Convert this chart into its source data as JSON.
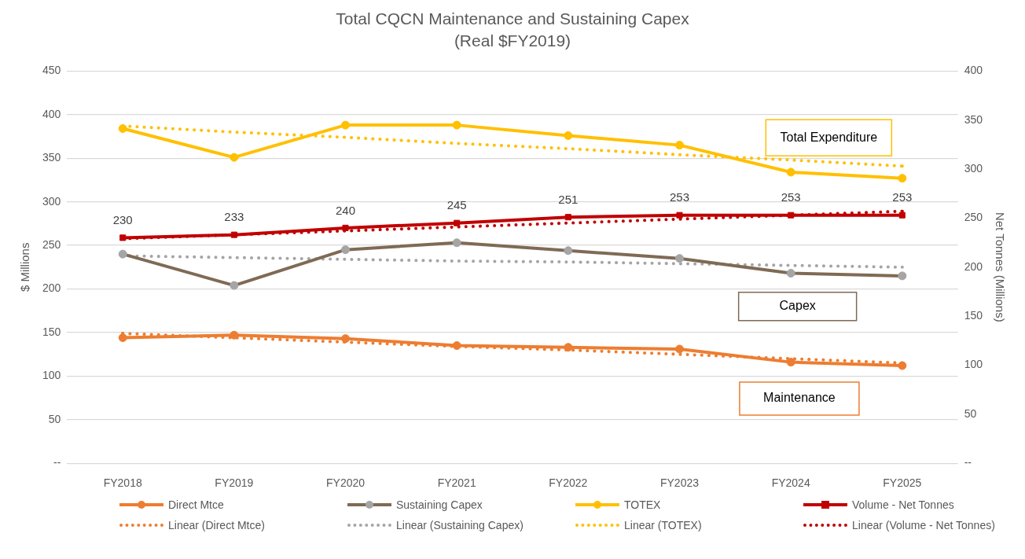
{
  "chart_data": {
    "type": "line",
    "title": "Total CQCN Maintenance and Sustaining Capex",
    "subtitle": "(Real $FY2019)",
    "ylabel": "$ Millions",
    "y2label": "Net Tonnes (Millions)",
    "categories": [
      "FY2018",
      "FY2019",
      "FY2020",
      "FY2021",
      "FY2022",
      "FY2023",
      "FY2024",
      "FY2025"
    ],
    "series": [
      {
        "name": "Direct Mtce",
        "color": "#ed7d31",
        "marker": "circle",
        "line_style": "solid",
        "values": [
          144,
          147,
          143,
          135,
          133,
          131,
          116,
          112
        ]
      },
      {
        "name": "Sustaining Capex",
        "color": "#7f6a55",
        "colors": [
          "#a5a5a5",
          "#a5a5a5",
          "#a5a5a5",
          "#a5a5a5",
          "#a5a5a5",
          "#a5a5a5",
          "#a5a5a5",
          "#a5a5a5"
        ],
        "marker": "circle",
        "line_style": "solid",
        "values": [
          240,
          204,
          245,
          253,
          244,
          235,
          218,
          215
        ]
      },
      {
        "name": "TOTEX",
        "color": "#ffc000",
        "marker": "circle",
        "line_style": "solid",
        "values": [
          384,
          351,
          388,
          388,
          376,
          365,
          334,
          327
        ]
      },
      {
        "name": "Volume - Net Tonnes",
        "color": "#c00000",
        "marker": "square",
        "line_style": "solid",
        "axis": "y2",
        "values": [
          230,
          233,
          240,
          245,
          251,
          253,
          253,
          253
        ],
        "value_labels": [
          "230",
          "233",
          "240",
          "245",
          "251",
          "253",
          "253",
          "253"
        ]
      },
      {
        "name": "Linear (Direct Mtce)",
        "color": "#ed7d31",
        "marker": "none",
        "line_style": "dotted",
        "values": [
          149,
          144,
          139,
          134,
          130,
          125,
          120,
          115
        ]
      },
      {
        "name": "Linear (Sustaining Capex)",
        "color": "#a5a5a5",
        "marker": "none",
        "line_style": "dotted",
        "values": [
          238,
          236,
          234,
          232,
          231,
          229,
          227,
          225
        ]
      },
      {
        "name": "Linear (TOTEX)",
        "color": "#ffc000",
        "marker": "none",
        "line_style": "dotted",
        "values": [
          387,
          380,
          374,
          367,
          361,
          354,
          348,
          341
        ]
      },
      {
        "name": "Linear (Volume - Net Tonnes)",
        "color": "#c00000",
        "marker": "none",
        "line_style": "dotted",
        "axis": "y2",
        "values": [
          229,
          233,
          237,
          241,
          245,
          249,
          253,
          257
        ]
      }
    ],
    "ylim": [
      0,
      450
    ],
    "yticks": [
      {
        "value": 0,
        "label": "--"
      },
      50,
      100,
      150,
      200,
      250,
      300,
      350,
      400,
      450
    ],
    "y2lim": [
      0,
      400
    ],
    "y2ticks": [
      {
        "value": 0,
        "label": "--"
      },
      50,
      100,
      150,
      200,
      250,
      300,
      350,
      400
    ],
    "annotations": [
      "Total Expenditure",
      "Capex",
      "Maintenance"
    ],
    "grid": "y",
    "legend": "bottom"
  }
}
